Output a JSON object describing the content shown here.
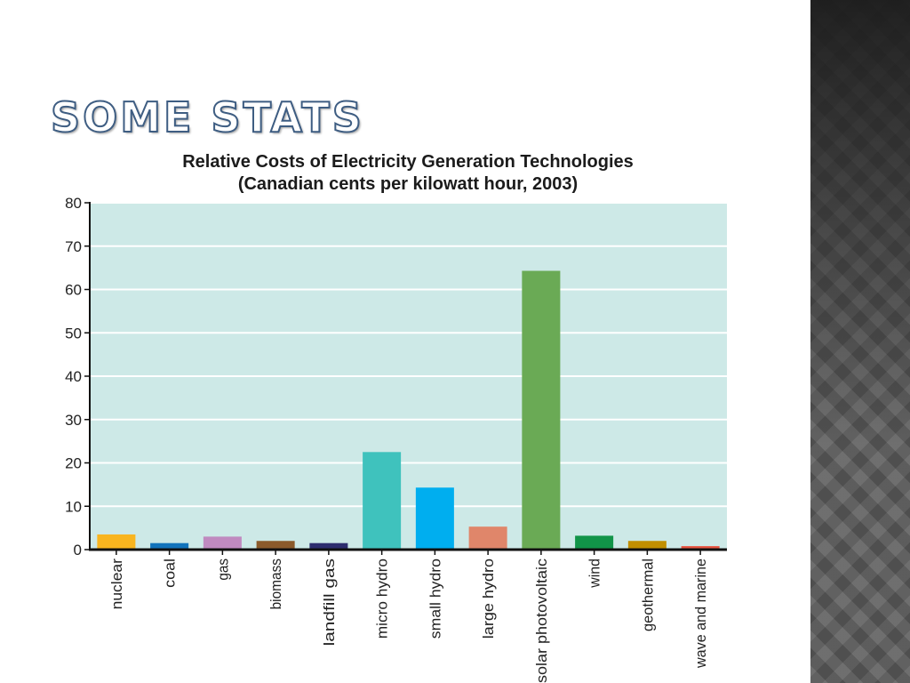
{
  "slide": {
    "title": "Some stats"
  },
  "chart_data": {
    "type": "bar",
    "title": "Relative Costs of Electricity Generation Technologies",
    "subtitle": "(Canadian cents per kilowatt hour, 2003)",
    "xlabel": "",
    "ylabel": "",
    "ylim": [
      0,
      80
    ],
    "yticks": [
      0,
      10,
      20,
      30,
      40,
      50,
      60,
      70,
      80
    ],
    "grid": true,
    "plot_background": "#cde9e7",
    "categories": [
      "nuclear",
      "coal",
      "gas",
      "biomass",
      "landfill gas",
      "micro hydro",
      "small hydro",
      "large hydro",
      "solar photovoltaic",
      "wind",
      "geothermal",
      "wave and marine"
    ],
    "values": [
      3.5,
      1.5,
      3.0,
      2.0,
      1.5,
      22.5,
      14.3,
      5.3,
      64.3,
      3.2,
      2.0,
      0.8
    ],
    "colors": [
      "#f9b51f",
      "#1273bb",
      "#c08ac0",
      "#8b5a2b",
      "#2d2d6e",
      "#3fc2bd",
      "#00aeef",
      "#e0866a",
      "#6aaa55",
      "#119448",
      "#c18f00",
      "#e8543f"
    ]
  }
}
